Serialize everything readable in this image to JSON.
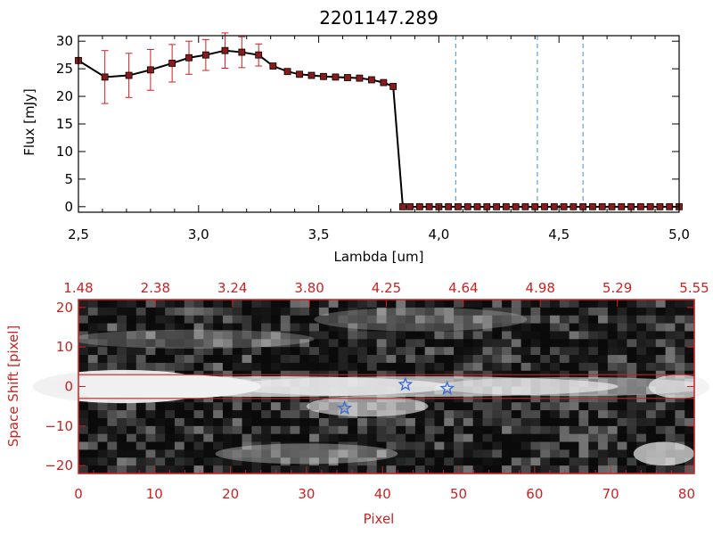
{
  "chart_data": [
    {
      "type": "line",
      "title": "2201147.289",
      "xlabel": "Lambda [um]",
      "ylabel": "Flux [mJy]",
      "xlim": [
        2.5,
        5.0
      ],
      "ylim": [
        -1,
        31
      ],
      "xticks": [
        "2.5",
        "3.0",
        "3.5",
        "4.0",
        "4.5",
        "5.0"
      ],
      "yticks": [
        "0",
        "5",
        "10",
        "15",
        "20",
        "25",
        "30"
      ],
      "series": [
        {
          "x": [
            2.5,
            2.61,
            2.71,
            2.8,
            2.89,
            2.96,
            3.03,
            3.11,
            3.18,
            3.25,
            3.31,
            3.37,
            3.42,
            3.47,
            3.52,
            3.57,
            3.62,
            3.67,
            3.72,
            3.77,
            3.81,
            3.85,
            3.88,
            3.92,
            3.96,
            4.0,
            4.04,
            4.08,
            4.12,
            4.16,
            4.2,
            4.24,
            4.28,
            4.32,
            4.36,
            4.4,
            4.44,
            4.48,
            4.52,
            4.56,
            4.6,
            4.64,
            4.68,
            4.72,
            4.76,
            4.8,
            4.84,
            4.88,
            4.92,
            4.96,
            5.0
          ],
          "y": [
            26.5,
            23.5,
            23.8,
            24.8,
            26.0,
            27.0,
            27.5,
            28.3,
            28.0,
            27.5,
            25.5,
            24.5,
            24.0,
            23.8,
            23.6,
            23.5,
            23.4,
            23.3,
            23.0,
            22.5,
            21.8,
            0,
            0,
            0,
            0,
            0,
            0,
            0,
            0,
            0,
            0,
            0,
            0,
            0,
            0,
            0,
            0,
            0,
            0,
            0,
            0,
            0,
            0,
            0,
            0,
            0,
            0,
            0,
            0,
            0,
            0
          ],
          "yerr": [
            0,
            4.8,
            4.0,
            3.7,
            3.4,
            3.0,
            2.8,
            3.2,
            2.8,
            2.0,
            0,
            0,
            0,
            0,
            0,
            0,
            0,
            0,
            0,
            0,
            0,
            0,
            0,
            0,
            0,
            0,
            0,
            0,
            0,
            0,
            0,
            0,
            0,
            0,
            0,
            0,
            0,
            0,
            0,
            0,
            0,
            0,
            0,
            0,
            0,
            0,
            0,
            0,
            0,
            0,
            0
          ]
        }
      ],
      "vlines": [
        4.07,
        4.41,
        4.6
      ],
      "grid": false
    },
    {
      "type": "heatmap",
      "xlabel": "Pixel",
      "ylabel": "Space Shift [pixel]",
      "xlim": [
        0,
        81
      ],
      "ylim": [
        -22,
        22
      ],
      "xticks": [
        "0",
        "10",
        "20",
        "30",
        "40",
        "50",
        "60",
        "70",
        "80"
      ],
      "yticks": [
        "−20",
        "−10",
        "0",
        "10",
        "20"
      ],
      "top_axis_ticks": [
        "1.48",
        "2.38",
        "3.24",
        "3.80",
        "4.25",
        "4.64",
        "4.98",
        "5.29",
        "5.55"
      ],
      "hlines": [
        3,
        -3
      ],
      "markers": [
        {
          "x": 35,
          "y": -5.5
        },
        {
          "x": 43,
          "y": 0.5
        },
        {
          "x": 48.5,
          "y": -0.5
        }
      ],
      "colors": {
        "axis": "#cc2222",
        "markers": "#3a6fd8",
        "dashes": "#3a8fd0"
      }
    }
  ]
}
